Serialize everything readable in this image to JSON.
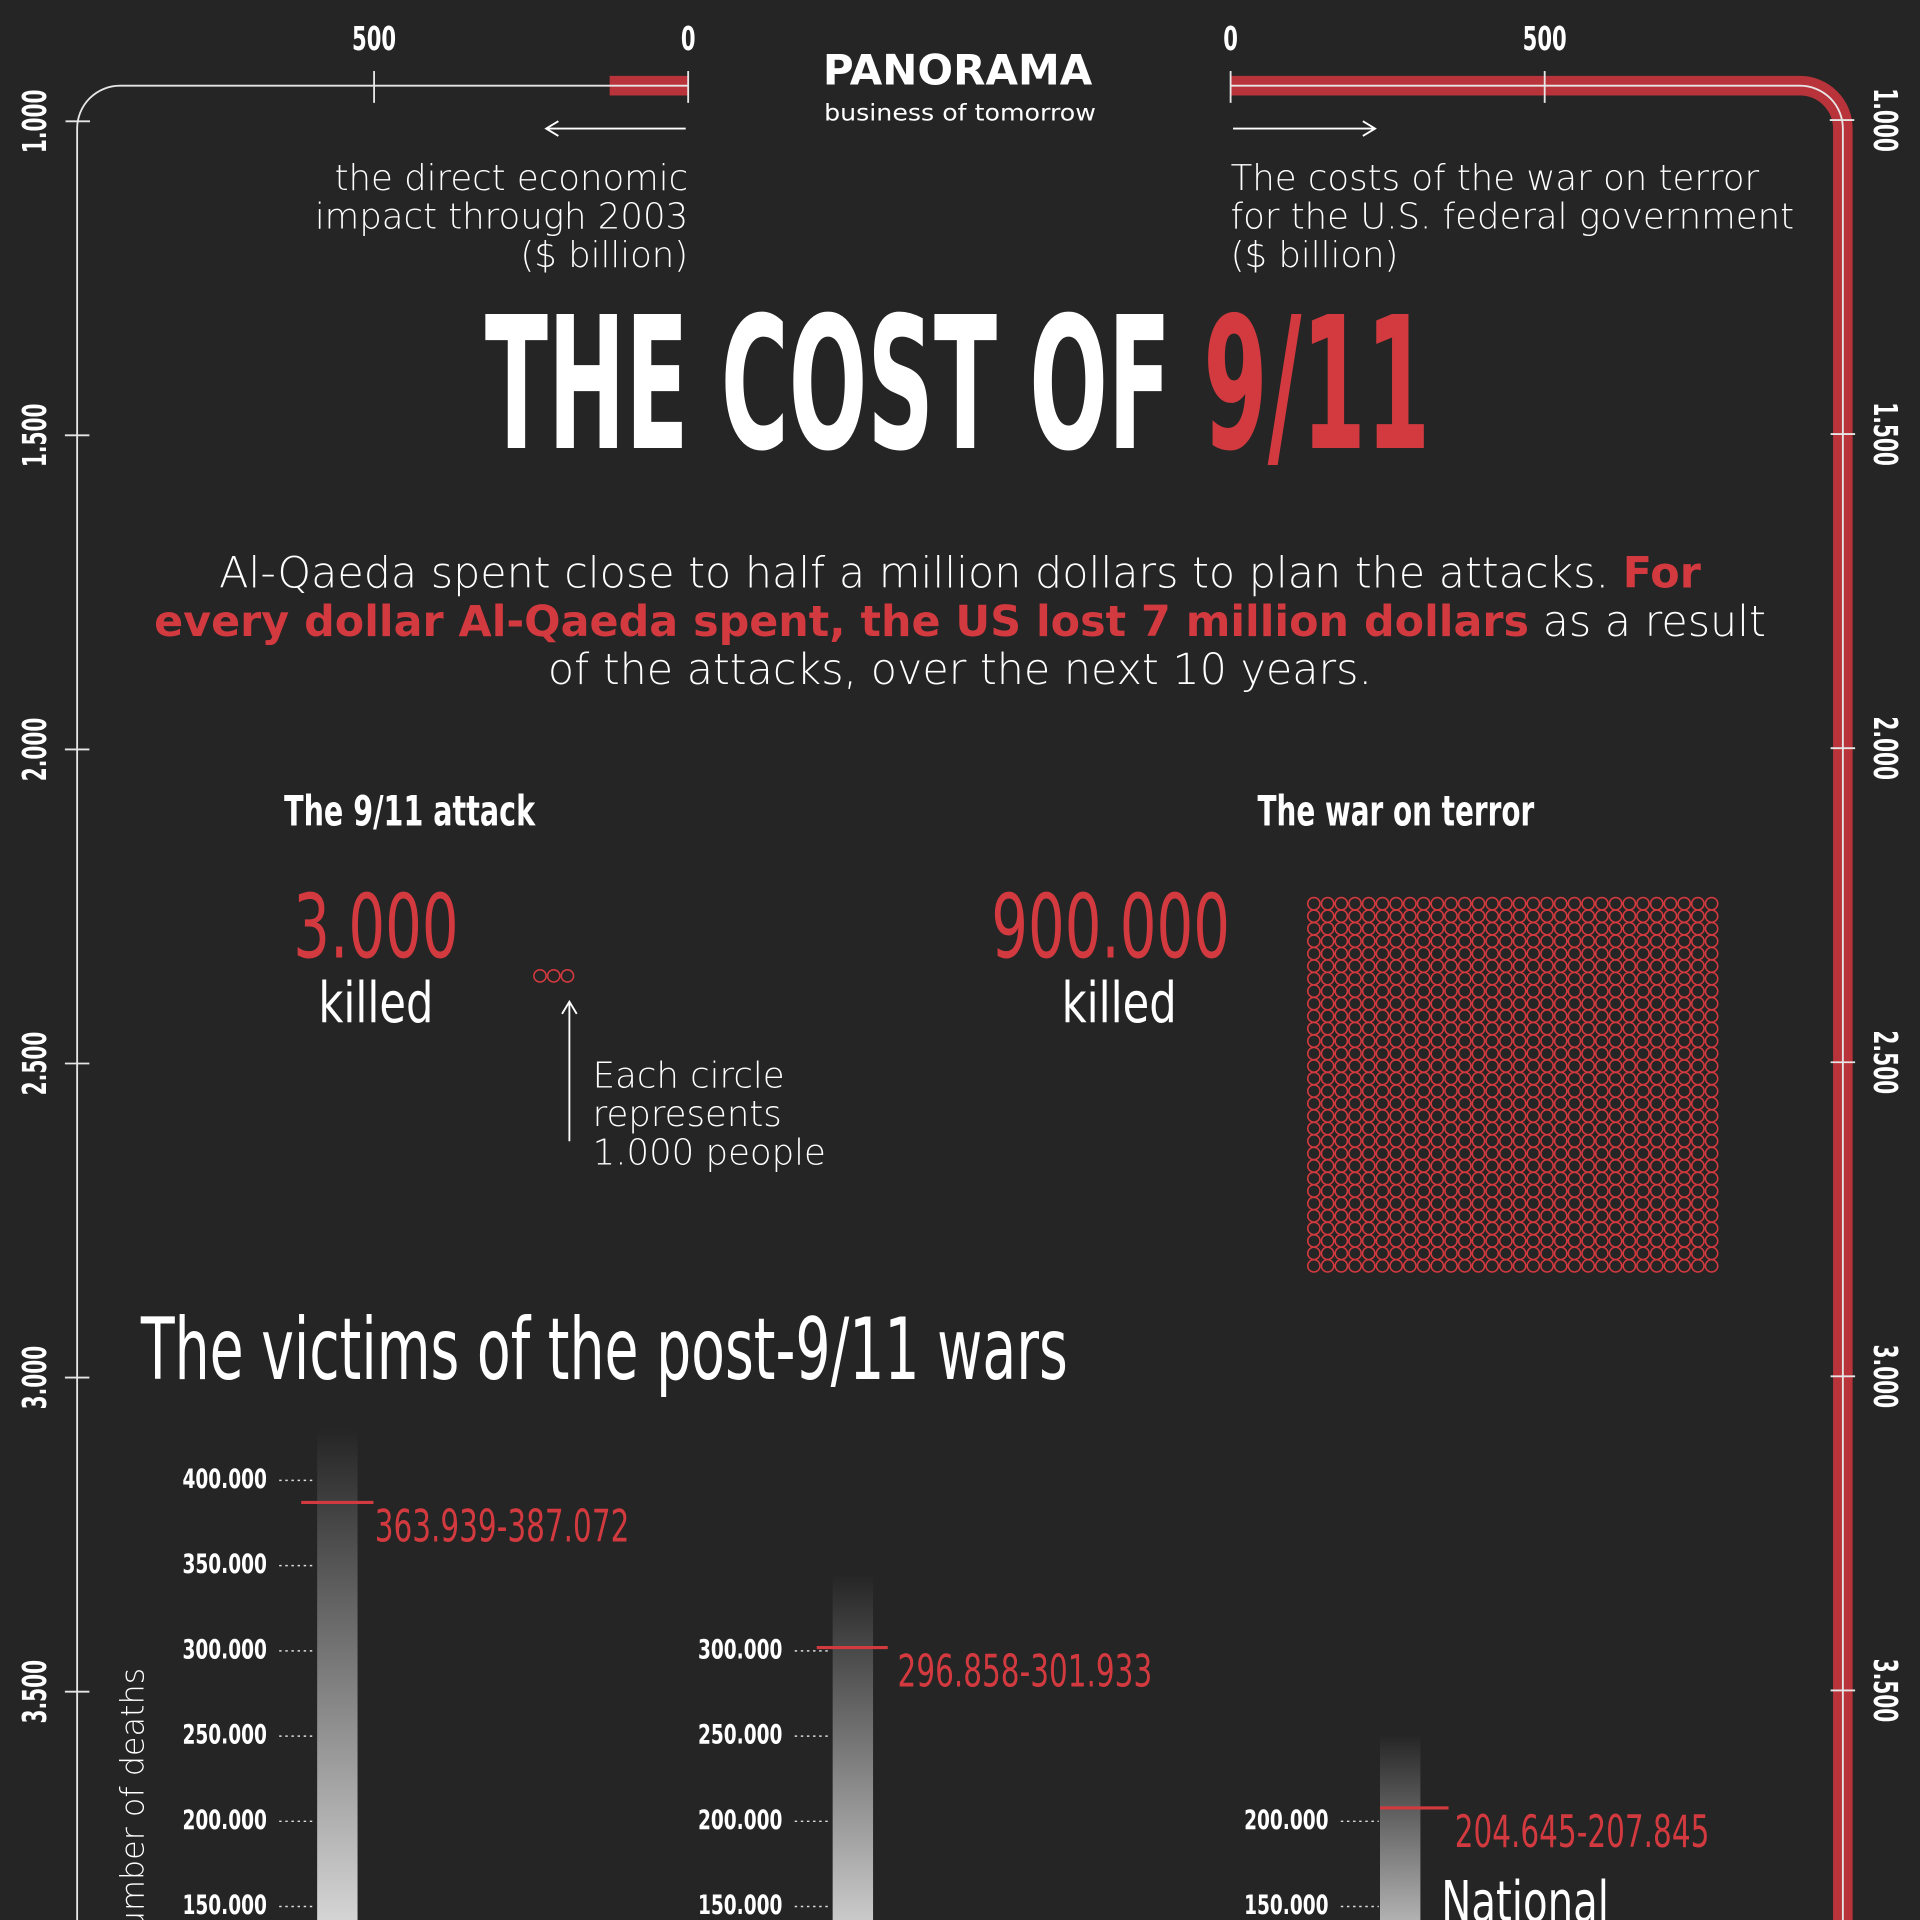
{
  "logo": {
    "name": "PANORAMA",
    "tagline": "business of tomorrow"
  },
  "title": {
    "text": "THE COST OF ",
    "highlight": "9/11"
  },
  "intro": {
    "lines": [
      [
        {
          "text": "Al-Qaeda spent close to half a million dollars to plan the attacks. "
        },
        {
          "text": "For",
          "highlight": true
        }
      ],
      [
        {
          "text": "every dollar Al-Qaeda spent, the US lost 7 million dollars",
          "highlight": true
        },
        {
          "text": " as a result"
        }
      ],
      [
        {
          "text": "of the attacks, over the next 10 years."
        }
      ]
    ]
  },
  "chart_data": [
    {
      "type": "frame-bar",
      "side": "left",
      "label_lines": [
        "the direct economic",
        "impact through 2003",
        "($ billion)"
      ],
      "value": 125,
      "color": "#b8333a",
      "ticks": [
        0,
        500,
        {
          "value": 1000,
          "label": "1.000"
        },
        {
          "value": 1500,
          "label": "1.500"
        },
        {
          "value": 2000,
          "label": "2.000"
        },
        {
          "value": 2500,
          "label": "2.500"
        },
        {
          "value": 3000,
          "label": "3.000"
        },
        {
          "value": 3500,
          "label": "3.500"
        }
      ]
    },
    {
      "type": "frame-bar",
      "side": "right",
      "label_lines": [
        "The costs of the war on terror",
        "for the U.S. federal government",
        "($ billion)"
      ],
      "value": 5600,
      "color": "#b8333a",
      "ticks": [
        0,
        500,
        {
          "value": 1000,
          "label": "1.000"
        },
        {
          "value": 1500,
          "label": "1.500"
        },
        {
          "value": 2000,
          "label": "2.000"
        },
        {
          "value": 2500,
          "label": "2.500"
        },
        {
          "value": 3000,
          "label": "3.000"
        },
        {
          "value": 3500,
          "label": "3.500"
        }
      ]
    },
    {
      "type": "pictogram",
      "title": "The 9/11 attack",
      "killed": {
        "value": 3000,
        "label": "3.000"
      },
      "caption": "killed",
      "unit": 1000,
      "color": "#d23a3f",
      "note_lines": [
        "Each circle",
        "represents",
        "1.000 people"
      ]
    },
    {
      "type": "pictogram",
      "title": "The war on terror",
      "killed": {
        "value": 900000,
        "label": "900.000"
      },
      "caption": "killed",
      "unit": 1000,
      "color": "#d23a3f"
    },
    {
      "type": "range-bar",
      "title": "The victims of the post-9/11 wars",
      "y_label": "number of deaths",
      "ylim": [
        150000,
        400000
      ],
      "color": "#d23a3f",
      "panels": [
        {
          "yticks": [
            {
              "value": 150000,
              "label": "150.000"
            },
            {
              "value": 200000,
              "label": "200.000"
            },
            {
              "value": 250000,
              "label": "250.000"
            },
            {
              "value": 300000,
              "label": "300.000"
            },
            {
              "value": 350000,
              "label": "350.000"
            },
            {
              "value": 400000,
              "label": "400.000"
            }
          ],
          "low": 363939,
          "high": 387072,
          "value_label": "363.939-387.072"
        },
        {
          "yticks": [
            {
              "value": 150000,
              "label": "150.000"
            },
            {
              "value": 200000,
              "label": "200.000"
            },
            {
              "value": 250000,
              "label": "250.000"
            },
            {
              "value": 300000,
              "label": "300.000"
            }
          ],
          "low": 296858,
          "high": 301933,
          "value_label": "296.858-301.933"
        },
        {
          "yticks": [
            {
              "value": 150000,
              "label": "150.000"
            },
            {
              "value": 200000,
              "label": "200.000"
            }
          ],
          "low": 204645,
          "high": 207845,
          "value_label": "204.645-207.845",
          "label": "National"
        }
      ]
    }
  ]
}
